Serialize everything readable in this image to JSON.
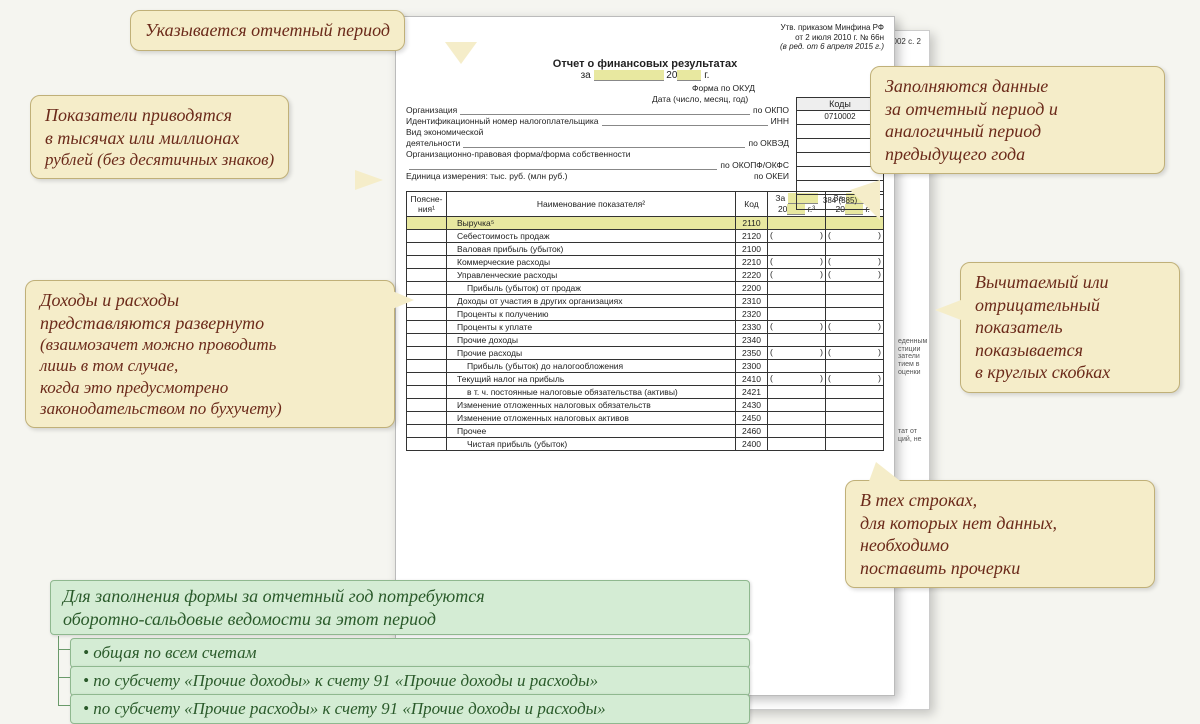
{
  "callouts": {
    "period": "Указывается отчетный период",
    "units_l1": "Показатели приводятся",
    "units_l2": "в тысячах или  миллионах",
    "units_l3": "рублей (без десятичных знаков)",
    "fill_l1": "Заполняются данные",
    "fill_l2": "за отчетный период и",
    "fill_l3": "аналогичный период",
    "fill_l4": "предыдущего года",
    "expand_l1": "Доходы и расходы",
    "expand_l2": "представляются развернуто",
    "expand_l3": "(взаимозачет можно проводить",
    "expand_l4": "лишь в том случае,",
    "expand_l5": "когда это предусмотрено",
    "expand_l6": "законодательством по бухучету)",
    "neg_l1": "Вычитаемый или",
    "neg_l2": "отрицательный",
    "neg_l3": "показатель",
    "neg_l4": "показывается",
    "neg_l5": "в круглых скобках",
    "dash_l1": "В тех строках,",
    "dash_l2": "для которых нет данных,",
    "dash_l3": "необходимо",
    "dash_l4": "поставить прочерки"
  },
  "green": {
    "head_l1": "Для заполнения формы за отчетный год потребуются",
    "head_l2": "оборотно-сальдовые ведомости за этот период",
    "i1": "• общая по всем счетам",
    "i2": "• по субсчету «Прочие доходы» к счету 91 «Прочие доходы и расходы»",
    "i3": "• по субсчету «Прочие расходы» к счету 91 «Прочие доходы и расходы»"
  },
  "doc": {
    "approv_l1": "Утв. приказом Минфина РФ",
    "approv_l2": "от 2 июля 2010 г. № 66н",
    "approv_l3": "(в ред. от 6 апреля 2015 г.)",
    "back_hdr": "002 с. 2",
    "title": "Отчет о финансовых результатах",
    "subtitle_pre": "за",
    "subtitle_mid": "20",
    "subtitle_suf": "г.",
    "codes_hd": "Коды",
    "okud": "0710002",
    "okei": "384 (385)",
    "r_okud": "Форма по ОКУД",
    "r_date": "Дата (число, месяц, год)",
    "r_org": "Организация",
    "r_okpo": "по ОКПО",
    "r_inn_l": "Идентификационный номер налогоплательщика",
    "r_inn": "ИНН",
    "r_econ_l": "Вид экономической",
    "r_econ_l2": "деятельности",
    "r_okved": "по ОКВЭД",
    "r_opf_l": "Организационно-правовая форма/форма собственности",
    "r_okopf": "по ОКОПФ/ОКФС",
    "r_unit_l": "Единица измерения: тыс. руб. (млн руб.)",
    "r_okei": "по ОКЕИ",
    "th_expl": "Поясне-\nния¹",
    "th_name": "Наименование показателя²",
    "th_code": "Код",
    "th_za": "За",
    "th_20": "20",
    "th_g3": "г.³",
    "th_g4": "г.⁴"
  },
  "rows": [
    {
      "name": "Выручка⁵",
      "code": "2110",
      "hl": true,
      "paren": false,
      "indent": 1
    },
    {
      "name": "Себестоимость продаж",
      "code": "2120",
      "hl": false,
      "paren": true,
      "indent": 1
    },
    {
      "name": "Валовая прибыль (убыток)",
      "code": "2100",
      "hl": false,
      "paren": false,
      "indent": 1
    },
    {
      "name": "Коммерческие расходы",
      "code": "2210",
      "hl": false,
      "paren": true,
      "indent": 1
    },
    {
      "name": "Управленческие расходы",
      "code": "2220",
      "hl": false,
      "paren": true,
      "indent": 1
    },
    {
      "name": "Прибыль (убыток) от продаж",
      "code": "2200",
      "hl": false,
      "paren": false,
      "indent": 2
    },
    {
      "name": "Доходы от участия в других организациях",
      "code": "2310",
      "hl": false,
      "paren": false,
      "indent": 1
    },
    {
      "name": "Проценты к получению",
      "code": "2320",
      "hl": false,
      "paren": false,
      "indent": 1
    },
    {
      "name": "Проценты к уплате",
      "code": "2330",
      "hl": false,
      "paren": true,
      "indent": 1
    },
    {
      "name": "Прочие доходы",
      "code": "2340",
      "hl": false,
      "paren": false,
      "indent": 1
    },
    {
      "name": "Прочие расходы",
      "code": "2350",
      "hl": false,
      "paren": true,
      "indent": 1
    },
    {
      "name": "Прибыль (убыток) до налогообложения",
      "code": "2300",
      "hl": false,
      "paren": false,
      "indent": 2
    },
    {
      "name": "Текущий налог на прибыль",
      "code": "2410",
      "hl": false,
      "paren": true,
      "indent": 1
    },
    {
      "name": "в т. ч. постоянные налоговые обязательства (активы)",
      "code": "2421",
      "hl": false,
      "paren": false,
      "indent": 2
    },
    {
      "name": "Изменение отложенных налоговых обязательств",
      "code": "2430",
      "hl": false,
      "paren": false,
      "indent": 1
    },
    {
      "name": "Изменение отложенных налоговых активов",
      "code": "2450",
      "hl": false,
      "paren": false,
      "indent": 1
    },
    {
      "name": "Прочее",
      "code": "2460",
      "hl": false,
      "paren": false,
      "indent": 1
    },
    {
      "name": "Чистая прибыль (убыток)",
      "code": "2400",
      "hl": false,
      "paren": false,
      "indent": 2
    }
  ],
  "sidenotes": {
    "s1": "еденным\nстиции\nзатели\nтием в\nоценки",
    "s2": "тат от\nций, не"
  },
  "colors": {
    "callout_bg": "#f5edc9",
    "callout_text": "#6b2a1a",
    "green_bg": "#d4ecd4",
    "green_text": "#2a5a2a",
    "hl": "#e8e8a0"
  }
}
